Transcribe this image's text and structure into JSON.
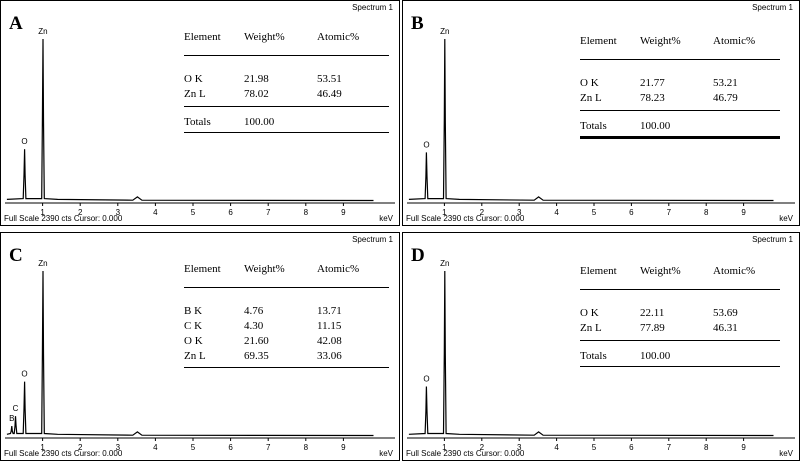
{
  "chart_data": [
    {
      "type": "line",
      "panel_letter": "A",
      "spectrum_label": "Spectrum 1",
      "footer": "Full Scale 2390 cts Cursor: 0.000",
      "xlabel": "keV",
      "xlim": [
        0,
        10
      ],
      "x_ticks": [
        "1",
        "2",
        "3",
        "4",
        "5",
        "6",
        "7",
        "8",
        "9"
      ],
      "peaks": [
        {
          "label": "O",
          "x": 0.52,
          "y": 0.32
        },
        {
          "label": "Zn",
          "x": 1.01,
          "y": 1.0
        }
      ],
      "table": {
        "headers": [
          "Element",
          "Weight%",
          "Atomic%"
        ],
        "rows": [
          [
            "O K",
            "21.98",
            "53.51"
          ],
          [
            "Zn L",
            "78.02",
            "46.49"
          ]
        ],
        "totals": [
          "Totals",
          "100.00"
        ]
      }
    },
    {
      "type": "line",
      "panel_letter": "B",
      "spectrum_label": "Spectrum 1",
      "footer": "Full Scale 2390 cts Cursor: 0.000",
      "xlabel": "keV",
      "xlim": [
        0,
        10
      ],
      "x_ticks": [
        "1",
        "2",
        "3",
        "4",
        "5",
        "6",
        "7",
        "8",
        "9"
      ],
      "peaks": [
        {
          "label": "O",
          "x": 0.52,
          "y": 0.3
        },
        {
          "label": "Zn",
          "x": 1.01,
          "y": 1.0
        }
      ],
      "table": {
        "headers": [
          "Element",
          "Weight%",
          "Atomic%"
        ],
        "rows": [
          [
            "O K",
            "21.77",
            "53.21"
          ],
          [
            "Zn L",
            "78.23",
            "46.79"
          ]
        ],
        "totals": [
          "Totals",
          "100.00"
        ]
      }
    },
    {
      "type": "line",
      "panel_letter": "C",
      "spectrum_label": "Spectrum 1",
      "footer": "Full Scale 2390 cts Cursor: 0.000",
      "xlabel": "keV",
      "xlim": [
        0,
        10
      ],
      "x_ticks": [
        "1",
        "2",
        "3",
        "4",
        "5",
        "6",
        "7",
        "8",
        "9"
      ],
      "peaks": [
        {
          "label": "B",
          "x": 0.18,
          "y": 0.06
        },
        {
          "label": "C",
          "x": 0.28,
          "y": 0.12
        },
        {
          "label": "O",
          "x": 0.52,
          "y": 0.33
        },
        {
          "label": "Zn",
          "x": 1.01,
          "y": 1.0
        }
      ],
      "table": {
        "headers": [
          "Element",
          "Weight%",
          "Atomic%"
        ],
        "rows": [
          [
            "B K",
            "4.76",
            "13.71"
          ],
          [
            "C K",
            "4.30",
            "11.15"
          ],
          [
            "O K",
            "21.60",
            "42.08"
          ],
          [
            "Zn L",
            "69.35",
            "33.06"
          ]
        ],
        "totals": []
      }
    },
    {
      "type": "line",
      "panel_letter": "D",
      "spectrum_label": "Spectrum 1",
      "footer": "Full Scale 2390 cts Cursor: 0.000",
      "xlabel": "keV",
      "xlim": [
        0,
        10
      ],
      "x_ticks": [
        "1",
        "2",
        "3",
        "4",
        "5",
        "6",
        "7",
        "8",
        "9"
      ],
      "peaks": [
        {
          "label": "O",
          "x": 0.52,
          "y": 0.3
        },
        {
          "label": "Zn",
          "x": 1.01,
          "y": 1.0
        }
      ],
      "table": {
        "headers": [
          "Element",
          "Weight%",
          "Atomic%"
        ],
        "rows": [
          [
            "O K",
            "22.11",
            "53.69"
          ],
          [
            "Zn L",
            "77.89",
            "46.31"
          ]
        ],
        "totals": [
          "Totals",
          "100.00"
        ]
      }
    }
  ]
}
